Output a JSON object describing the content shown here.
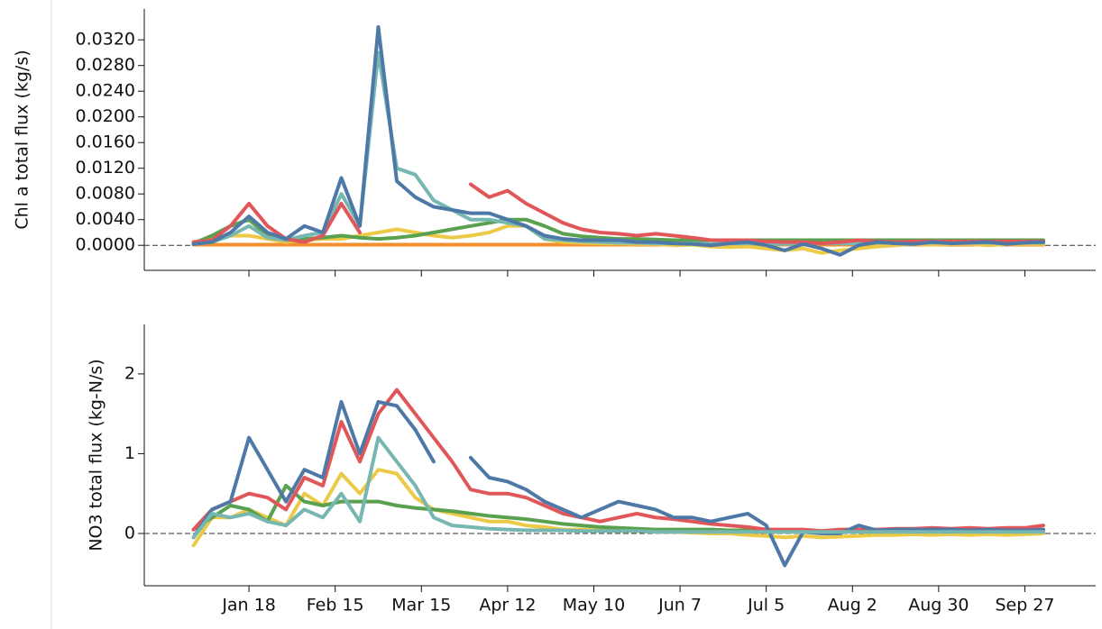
{
  "chart_data": [
    {
      "type": "line",
      "ylabel": "Chl a total flux (kg/s)",
      "x": [
        0,
        6,
        12,
        18,
        24,
        30,
        36,
        42,
        48,
        54,
        60,
        66,
        72,
        78,
        84,
        90,
        96,
        102,
        108,
        114,
        120,
        126,
        132,
        138,
        144,
        150,
        156,
        162,
        168,
        174,
        180,
        186,
        192,
        198,
        204,
        210,
        216,
        222,
        228,
        234,
        240,
        246,
        252,
        258,
        264,
        270,
        276
      ],
      "xlim": [
        -16,
        293
      ],
      "ylim": [
        -0.0039,
        0.0368
      ],
      "yticks": [
        {
          "value": 0,
          "label": "0.0000"
        },
        {
          "value": 0.004,
          "label": "0.0040"
        },
        {
          "value": 0.008,
          "label": "0.0080"
        },
        {
          "value": 0.012,
          "label": "0.0120"
        },
        {
          "value": 0.016,
          "label": "0.0160"
        },
        {
          "value": 0.02,
          "label": "0.0200"
        },
        {
          "value": 0.024,
          "label": "0.0240"
        },
        {
          "value": 0.028,
          "label": "0.0280"
        },
        {
          "value": 0.032,
          "label": "0.0320"
        }
      ],
      "hline": 0,
      "series": [
        {
          "color": "#f28e2b",
          "values": [
            0.0001,
            0.0001,
            0.0001,
            0.0001,
            0.0001,
            0.0001,
            0.0001,
            0.0001,
            0.0001,
            0.0001,
            0.0001,
            0.0001,
            0.0001,
            0.0001,
            0.0001,
            0.0001,
            0.0001,
            0.0001,
            0.0001,
            0.0001,
            0.0001,
            0.0001,
            0.0001,
            0.0001,
            0.0001,
            0.0001,
            0.0001,
            0.0001,
            0.0001,
            0.0001,
            0.0001,
            0.0001,
            0.0001,
            0.0001,
            0.0001,
            0.0001,
            0.0001,
            0.0001,
            0.0001,
            0.0001,
            0.0001,
            0.0001,
            0.0001,
            0.0001,
            0.0001,
            0.0001,
            0.0001
          ]
        },
        {
          "color": "#edc948",
          "values": [
            0.0005,
            0.001,
            0.0015,
            0.0015,
            0.001,
            0.0005,
            0.0008,
            0.001,
            0.001,
            0.0015,
            0.002,
            0.0025,
            0.002,
            0.0015,
            0.0012,
            0.0015,
            0.002,
            0.003,
            0.003,
            0.001,
            0.0005,
            0.0004,
            0.0003,
            0.0003,
            0.0002,
            0.0002,
            0,
            0.0001,
            -0.0002,
            -0.0003,
            -0.0002,
            -0.0005,
            -0.0008,
            -0.0005,
            -0.0012,
            -0.0008,
            -0.0005,
            -0.0002,
            0,
            0.0002,
            0.0001,
            0.0002,
            0.0002,
            0,
            0.0002,
            0.0002,
            0.0002
          ]
        },
        {
          "color": "#59a14f",
          "values": [
            0.0003,
            0.0015,
            0.003,
            0.004,
            0.0015,
            0.0008,
            0.001,
            0.0012,
            0.0015,
            0.0012,
            0.001,
            0.0012,
            0.0015,
            0.002,
            0.0025,
            0.003,
            0.0035,
            0.004,
            0.004,
            0.003,
            0.0018,
            0.0014,
            0.0012,
            0.001,
            0.001,
            0.0009,
            0.0008,
            0.0008,
            0.0008,
            0.0008,
            0.0008,
            0.0008,
            0.0008,
            0.0008,
            0.0008,
            0.0008,
            0.0008,
            0.0008,
            0.0008,
            0.0008,
            0.0008,
            0.0008,
            0.0008,
            0.0008,
            0.0008,
            0.0008,
            0.0008
          ]
        },
        {
          "color": "#76b7b2",
          "values": [
            0.0002,
            0.0005,
            0.0015,
            0.003,
            0.0012,
            0.0008,
            0.0015,
            0.002,
            0.008,
            0.003,
            0.03,
            0.012,
            0.011,
            0.007,
            0.0055,
            0.004,
            0.004,
            0.0035,
            0.003,
            0.001,
            0.0008,
            0.0006,
            0.0005,
            0.0004,
            0.0004,
            0.0003,
            0.0003,
            0.0003,
            0.0002,
            0.0003,
            0.0003,
            0.0002,
            0.0002,
            0.0002,
            0.0003,
            0.0003,
            0.0003,
            0.0004,
            0.0004,
            0.0004,
            0.0004,
            0.0004,
            0.0004,
            0.0004,
            0.0004,
            0.0004,
            0.0004
          ]
        },
        {
          "color": "#e15759",
          "values": [
            0.0005,
            0.0008,
            0.003,
            0.0065,
            0.003,
            0.001,
            0.0005,
            0.0015,
            0.0065,
            0.002,
            null,
            null,
            null,
            null,
            null,
            0.0095,
            0.0075,
            0.0085,
            0.0065,
            0.005,
            0.0035,
            0.0025,
            0.002,
            0.0018,
            0.0015,
            0.0018,
            0.0015,
            0.0012,
            0.0008,
            0.0008,
            0.0008,
            0.0006,
            0.0005,
            0.0005,
            0.0003,
            0.0005,
            0.0008,
            0.0006,
            0.0005,
            0.0006,
            0.0006,
            0.0006,
            0.0006,
            0.0006,
            0.0006,
            0.0006,
            0.0006
          ]
        },
        {
          "color": "#4e79a7",
          "values": [
            0.0002,
            0.0005,
            0.002,
            0.0045,
            0.002,
            0.001,
            0.003,
            0.002,
            0.0105,
            0.003,
            0.034,
            0.01,
            0.0075,
            0.006,
            0.0055,
            0.005,
            0.005,
            0.004,
            0.003,
            0.0015,
            0.001,
            0.0008,
            0.0008,
            0.0008,
            0.0005,
            0.0005,
            0.0003,
            0.0002,
            0,
            0.0003,
            0.0005,
            0,
            -0.0008,
            0.0002,
            -0.0005,
            -0.0015,
            0,
            0.0005,
            0.0003,
            0.0002,
            0.0005,
            0.0003,
            0.0004,
            0.0005,
            0.0002,
            0.0004,
            0.0005
          ]
        }
      ]
    },
    {
      "type": "line",
      "ylabel": "NO3 total flux (kg-N/s)",
      "x": [
        0,
        6,
        12,
        18,
        24,
        30,
        36,
        42,
        48,
        54,
        60,
        66,
        72,
        78,
        84,
        90,
        96,
        102,
        108,
        114,
        120,
        126,
        132,
        138,
        144,
        150,
        156,
        162,
        168,
        174,
        180,
        186,
        192,
        198,
        204,
        210,
        216,
        222,
        228,
        234,
        240,
        246,
        252,
        258,
        264,
        270,
        276
      ],
      "xlim": [
        -16,
        293
      ],
      "ylim": [
        -0.655,
        2.62
      ],
      "yticks": [
        0,
        1,
        2
      ],
      "xticks": [
        {
          "value": 18,
          "label": "Jan 18"
        },
        {
          "value": 46,
          "label": "Feb 15"
        },
        {
          "value": 74,
          "label": "Mar 15"
        },
        {
          "value": 102,
          "label": "Apr 12"
        },
        {
          "value": 130,
          "label": "May 10"
        },
        {
          "value": 158,
          "label": "Jun 7"
        },
        {
          "value": 186,
          "label": "Jul 5"
        },
        {
          "value": 214,
          "label": "Aug 2"
        },
        {
          "value": 242,
          "label": "Aug 30"
        },
        {
          "value": 270,
          "label": "Sep 27"
        }
      ],
      "hline": 0,
      "series": [
        {
          "color": "#edc948",
          "values": [
            -0.15,
            0.2,
            0.2,
            0.3,
            0.2,
            0.1,
            0.5,
            0.35,
            0.75,
            0.5,
            0.8,
            0.75,
            0.45,
            0.3,
            0.25,
            0.2,
            0.15,
            0.15,
            0.1,
            0.08,
            0.05,
            0.05,
            0.04,
            0.03,
            0.03,
            0.02,
            0.02,
            0.01,
            0,
            0,
            -0.02,
            -0.03,
            -0.05,
            -0.03,
            -0.05,
            -0.04,
            -0.03,
            -0.02,
            -0.02,
            -0.01,
            -0.02,
            -0.01,
            -0.02,
            -0.01,
            -0.02,
            -0.01,
            0
          ]
        },
        {
          "color": "#59a14f",
          "values": [
            0.05,
            0.2,
            0.35,
            0.3,
            0.15,
            0.6,
            0.4,
            0.35,
            0.4,
            0.4,
            0.4,
            0.35,
            0.32,
            0.3,
            0.28,
            0.25,
            0.22,
            0.2,
            0.18,
            0.15,
            0.12,
            0.1,
            0.08,
            0.07,
            0.06,
            0.05,
            0.05,
            0.05,
            0.05,
            0.04,
            0.04,
            0.03,
            0.03,
            0.03,
            0.03,
            0.03,
            0.03,
            0.03,
            0.03,
            0.03,
            0.03,
            0.03,
            0.03,
            0.03,
            0.03,
            0.03,
            0.03
          ]
        },
        {
          "color": "#e15759",
          "values": [
            0.05,
            0.3,
            0.4,
            0.5,
            0.45,
            0.3,
            0.7,
            0.6,
            1.4,
            0.9,
            1.5,
            1.8,
            1.5,
            1.2,
            0.9,
            0.55,
            0.5,
            0.5,
            0.45,
            0.35,
            0.25,
            0.2,
            0.15,
            0.2,
            0.25,
            0.2,
            0.18,
            0.15,
            0.12,
            0.1,
            0.08,
            0.05,
            0.05,
            0.05,
            0.03,
            0.05,
            0.05,
            0.05,
            0.06,
            0.06,
            0.07,
            0.06,
            0.07,
            0.06,
            0.07,
            0.07,
            0.1
          ]
        },
        {
          "color": "#4e79a7",
          "values": [
            -0.05,
            0.3,
            0.4,
            1.2,
            0.8,
            0.4,
            0.8,
            0.7,
            1.65,
            1.0,
            1.65,
            1.6,
            1.3,
            0.9,
            null,
            0.95,
            0.7,
            0.65,
            0.55,
            0.4,
            0.3,
            0.2,
            0.3,
            0.4,
            0.35,
            0.3,
            0.2,
            0.2,
            0.15,
            0.2,
            0.25,
            0.1,
            -0.4,
            0.02,
            0,
            0,
            0.1,
            0.04,
            0.05,
            0.05,
            0.05,
            0.05,
            0.04,
            0.05,
            0.04,
            0.04,
            0.05
          ]
        },
        {
          "color": "#76b7b2",
          "values": [
            -0.05,
            0.25,
            0.2,
            0.25,
            0.15,
            0.1,
            0.3,
            0.2,
            0.5,
            0.15,
            1.2,
            0.9,
            0.6,
            0.2,
            0.1,
            0.08,
            0.06,
            0.05,
            0.04,
            0.04,
            0.04,
            0.03,
            0.03,
            0.03,
            0.03,
            0.02,
            0.02,
            0.02,
            0.02,
            0.02,
            0.02,
            0.02,
            0.02,
            0.02,
            0.02,
            0.02,
            0.02,
            0.02,
            0.02,
            0.02,
            0.02,
            0.02,
            0.02,
            0.02,
            0.02,
            0.02,
            0.02
          ]
        }
      ]
    }
  ]
}
